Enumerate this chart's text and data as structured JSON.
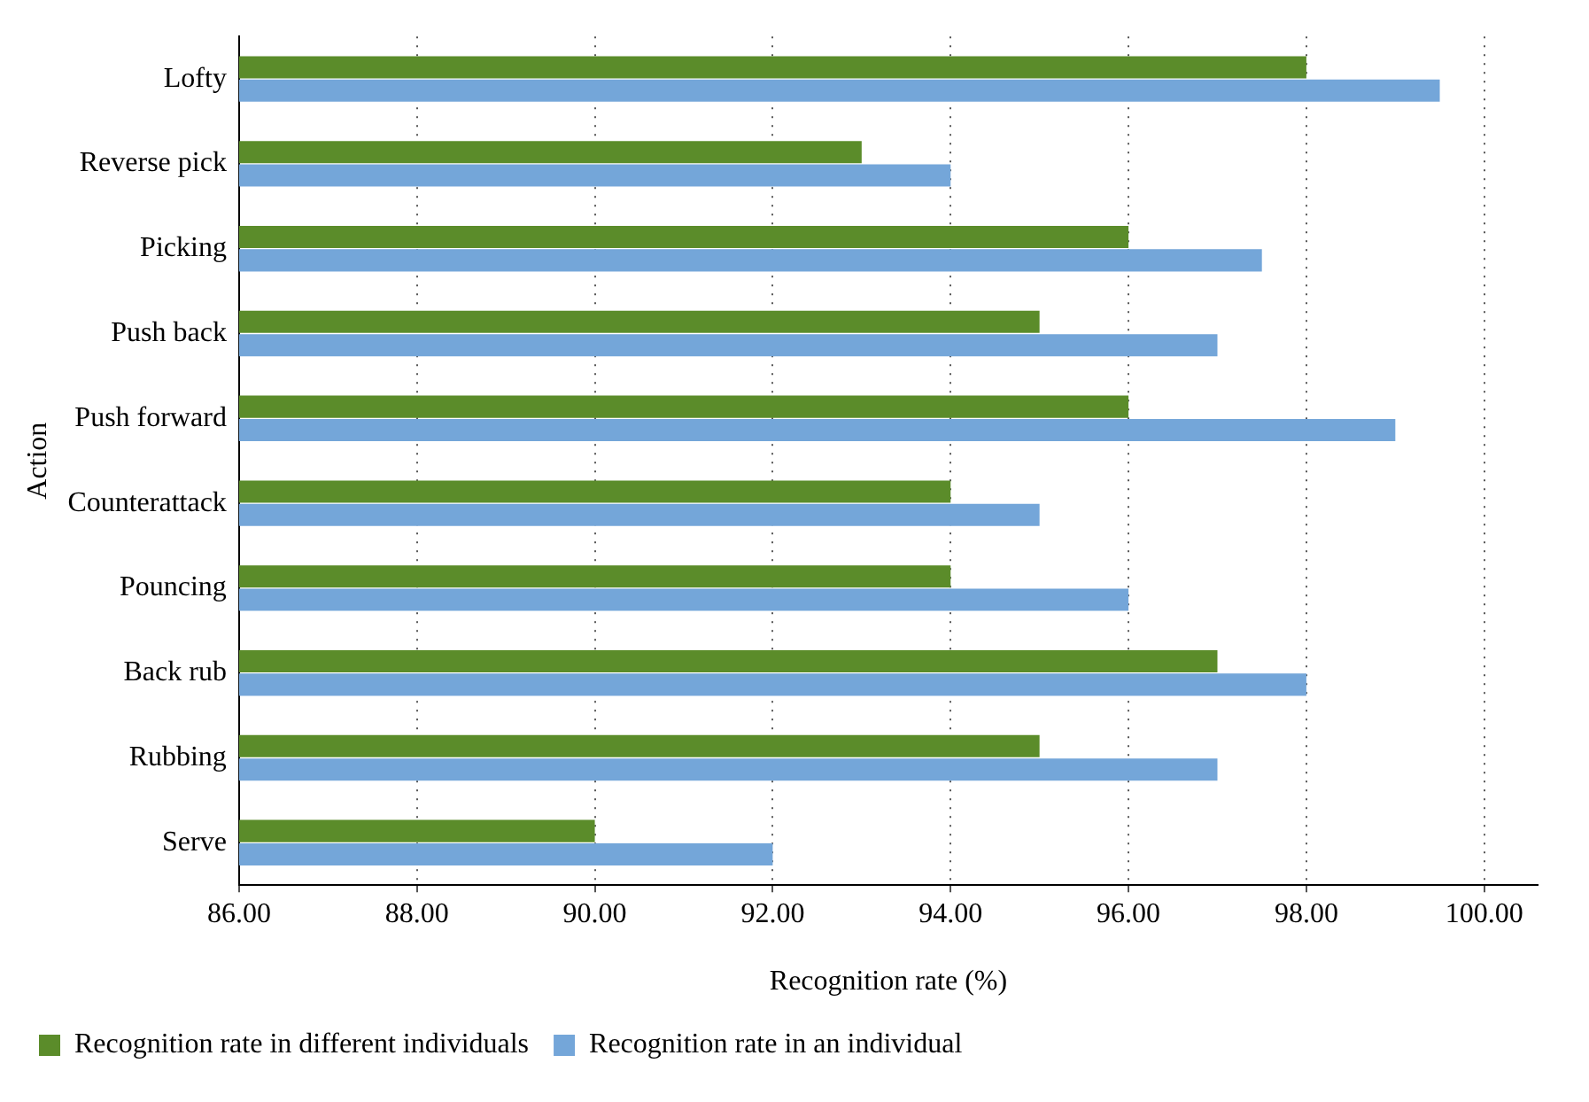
{
  "chart_data": {
    "type": "bar",
    "orientation": "horizontal",
    "xlabel": "Recognition rate (%)",
    "ylabel": "Action",
    "categories": [
      "Lofty",
      "Reverse pick",
      "Picking",
      "Push back",
      "Push forward",
      "Counterattack",
      "Pouncing",
      "Back rub",
      "Rubbing",
      "Serve"
    ],
    "series": [
      {
        "name": "Recognition rate in different individuals",
        "color": "#5b8c2a",
        "values": [
          98,
          93,
          96,
          95,
          96,
          94,
          94,
          97,
          95,
          90
        ]
      },
      {
        "name": "Recognition rate in an individual",
        "color": "#74a6d9",
        "values": [
          99.5,
          94,
          97.5,
          97,
          99,
          95,
          96,
          98,
          97,
          92
        ]
      }
    ],
    "xlim": [
      86,
      100.6
    ],
    "xticks": [
      {
        "value": 86,
        "label": "86.00"
      },
      {
        "value": 88,
        "label": "88.00"
      },
      {
        "value": 90,
        "label": "90.00"
      },
      {
        "value": 92,
        "label": "92.00"
      },
      {
        "value": 94,
        "label": "94.00"
      },
      {
        "value": 96,
        "label": "96.00"
      },
      {
        "value": 98,
        "label": "98.00"
      },
      {
        "value": 100,
        "label": "100.00"
      }
    ],
    "grid": "x",
    "legend": "bottom left"
  }
}
